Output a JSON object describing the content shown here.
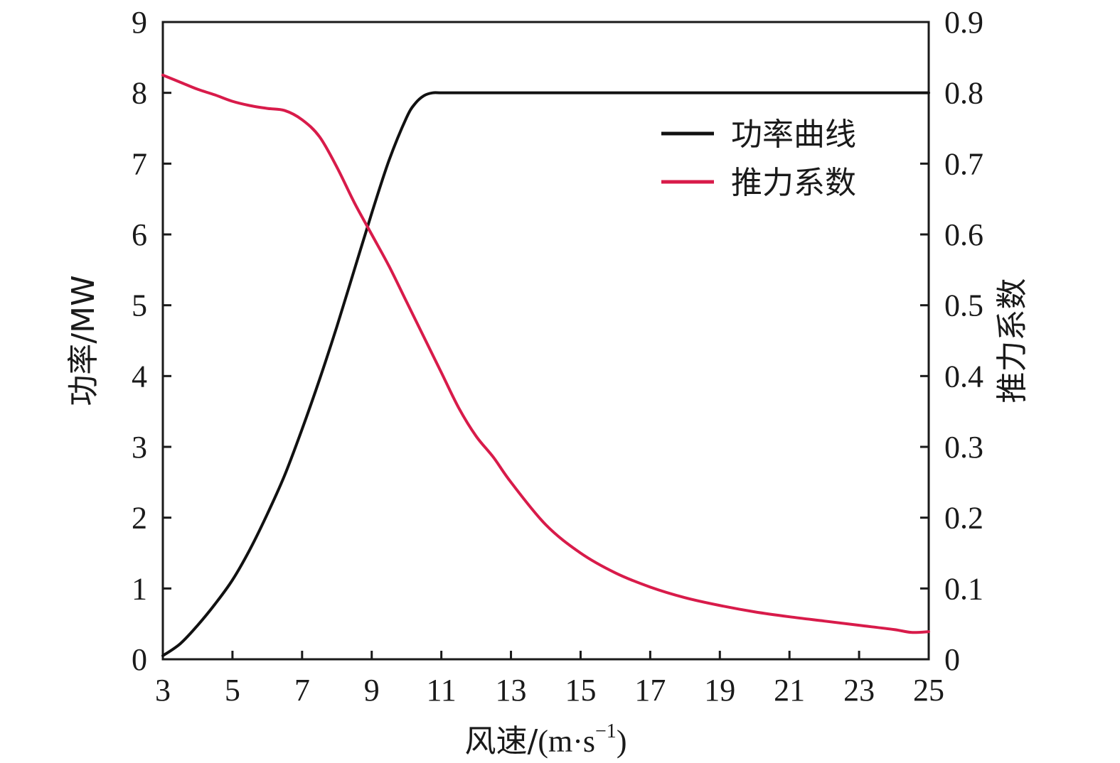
{
  "chart_data": {
    "type": "line",
    "xlabel_cn": "风速/",
    "xlabel_unit": "(m·s",
    "xlabel_sup": "−1",
    "xlabel_close": ")",
    "ylabel_left": "功率/MW",
    "ylabel_right": "推力系数",
    "xlim": [
      3,
      25
    ],
    "ylim_left": [
      0,
      9
    ],
    "ylim_right": [
      0,
      0.9
    ],
    "xticks": [
      3,
      5,
      7,
      9,
      11,
      13,
      15,
      17,
      19,
      21,
      23,
      25
    ],
    "yticks_left": [
      0,
      1,
      2,
      3,
      4,
      5,
      6,
      7,
      8,
      9
    ],
    "yticks_right": [
      "0",
      "0.1",
      "0.2",
      "0.3",
      "0.4",
      "0.5",
      "0.6",
      "0.7",
      "0.8",
      "0.9"
    ],
    "legend_position": "top-right",
    "series": [
      {
        "name": "功率曲线",
        "axis": "left",
        "color": "#111111",
        "x": [
          3,
          3.5,
          4,
          4.5,
          5,
          5.5,
          6,
          6.5,
          7,
          7.5,
          8,
          8.5,
          9,
          9.5,
          10,
          10.25,
          10.5,
          10.75,
          11,
          11.5,
          12,
          13,
          15,
          17,
          19,
          21,
          23,
          25
        ],
        "y": [
          0.05,
          0.22,
          0.48,
          0.78,
          1.12,
          1.55,
          2.05,
          2.6,
          3.25,
          3.95,
          4.7,
          5.5,
          6.3,
          7.05,
          7.65,
          7.85,
          7.96,
          8.0,
          8.0,
          8.0,
          8.0,
          8.0,
          8.0,
          8.0,
          8.0,
          8.0,
          8.0,
          8.0
        ]
      },
      {
        "name": "推力系数",
        "axis": "right",
        "color": "#d81b4a",
        "x": [
          3,
          3.5,
          4,
          4.5,
          5,
          5.5,
          6,
          6.5,
          7,
          7.5,
          8,
          8.5,
          9,
          9.5,
          10,
          10.5,
          11,
          11.5,
          12,
          12.5,
          13,
          14,
          15,
          16,
          17,
          18,
          19,
          20,
          21,
          22,
          23,
          24,
          24.5,
          25
        ],
        "y": [
          0.825,
          0.815,
          0.805,
          0.797,
          0.788,
          0.782,
          0.778,
          0.775,
          0.762,
          0.738,
          0.695,
          0.645,
          0.6,
          0.555,
          0.505,
          0.455,
          0.405,
          0.355,
          0.315,
          0.285,
          0.25,
          0.19,
          0.15,
          0.122,
          0.102,
          0.087,
          0.076,
          0.067,
          0.06,
          0.054,
          0.048,
          0.042,
          0.038,
          0.039
        ]
      }
    ]
  }
}
